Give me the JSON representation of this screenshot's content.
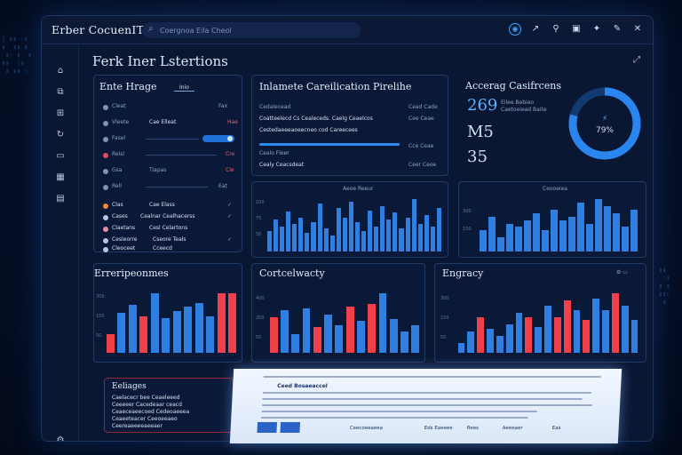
{
  "window": {
    "title": "Erber CocuenIT"
  },
  "search": {
    "placeholder": "Coergnoa Eila Cheol"
  },
  "page": {
    "title": "Ferk Iner Lstertions"
  },
  "panels": {
    "left_top": {
      "title": "Ente Hrage",
      "tab": "Inio",
      "rows": [
        {
          "label": "Cleat",
          "value": "Fax"
        },
        {
          "label": "Vleete",
          "mid": "Cae Elleat",
          "value": "Hae"
        },
        {
          "label": "Fasel",
          "toggle": true
        },
        {
          "label": "Reisl",
          "value": "Cre"
        },
        {
          "label": "Gsa",
          "mid": "Tiapas",
          "value": "Cle"
        },
        {
          "label": "Rell",
          "value": "Eat"
        }
      ],
      "list": [
        {
          "label": "Clas",
          "mid": "Cae Elass"
        },
        {
          "label": "Cases",
          "mid": "Cealnar Cealhacerss"
        },
        {
          "label": "Claetans",
          "mid": "Cesl Celartons"
        },
        {
          "label": "Cesleorre",
          "mid": "Cseore Teals"
        },
        {
          "label": "Cleoceet",
          "mid": "Cceecd"
        }
      ]
    },
    "pipeline": {
      "title": "Inlamete Careilication Pirelihe",
      "rows": [
        {
          "label": "Cedalecead",
          "value": "Cead Cade"
        },
        {
          "label": "Coatteelecd Cs Cealeceds. Caelg Ceaelcos",
          "value": "Cee Ceae"
        },
        {
          "label": "Cestedaeeeaoeecneo cod Careecees",
          "value": ""
        },
        {
          "label": "Cealo Fleer",
          "value": "Cce Ceae"
        },
        {
          "label": "Cealy Ceacsdeat",
          "value": "Ceer Ceoe"
        }
      ],
      "chart_title": "Aeoe Reeur"
    },
    "accuracy": {
      "title": "Accerag Casifrcens",
      "stats": [
        {
          "value": "269",
          "note": "Eilee Bebieo"
        },
        {
          "value": "M5",
          "note": ""
        },
        {
          "value": "35",
          "note": ""
        }
      ],
      "sub_note": "Caetoeiead Baite",
      "gauge_label": "79%",
      "gauge_value": 0.79,
      "chart_title": "Ceooeiea"
    },
    "efficiency": {
      "title": "Erreripeonmes"
    },
    "connectivity": {
      "title": "Cortcelwacty"
    },
    "energy": {
      "title": "Engracy"
    },
    "notes": {
      "title": "Eeliages",
      "lines": [
        "Caelacecr bee Ceaeleeed",
        "Ceeeeer Cacedeaar ceacd",
        "Ceaeceaeecoed Cedeoaeeea",
        "Ceaeeteacer Ceeoeeaeo",
        "Ceereaeeeeaeeaer"
      ]
    }
  },
  "doc": {
    "heading": "Ceed Bosaeaccel",
    "footer": [
      "Ceecoeeaeea",
      "Eds Eaeeee",
      "Rees",
      "Aeeeaer",
      "Eas"
    ]
  },
  "colors": {
    "blue": "#2f7ee0",
    "red": "#f0404a",
    "accent": "#3ea2ff"
  },
  "chart_data": [
    {
      "type": "bar",
      "title": "Aeoe Reeur",
      "values": [
        18,
        28,
        22,
        35,
        24,
        30,
        16,
        26,
        42,
        20,
        14,
        38,
        30,
        44,
        26,
        18,
        36,
        22,
        40,
        28,
        34,
        20,
        30,
        46,
        24,
        32,
        22,
        38
      ]
    },
    {
      "type": "bar",
      "title": "Ceooeiea",
      "values": [
        12,
        20,
        8,
        16,
        14,
        18,
        22,
        12,
        24,
        18,
        20,
        28,
        16,
        30,
        26,
        22,
        14,
        24
      ]
    },
    {
      "type": "bar",
      "title": "Erreripeonmes",
      "series": [
        {
          "values": [
            20,
            42,
            50,
            38,
            62,
            36,
            44,
            48,
            52,
            38,
            62,
            62
          ]
        }
      ],
      "red_index": [
        0,
        3,
        10,
        11
      ]
    },
    {
      "type": "bar",
      "title": "Cortcelwacty",
      "series": [
        {
          "values": [
            34,
            40,
            18,
            42,
            24,
            36,
            26,
            44,
            30,
            46,
            56,
            32,
            20,
            26
          ]
        }
      ],
      "red_index": [
        0,
        4,
        7,
        9
      ]
    },
    {
      "type": "bar",
      "title": "Engracy",
      "series": [
        {
          "values": [
            8,
            18,
            30,
            20,
            14,
            24,
            34,
            30,
            22,
            40,
            30,
            44,
            36,
            28,
            46,
            36,
            50,
            40,
            28
          ]
        }
      ],
      "red_index": [
        2,
        7,
        10,
        11,
        13,
        16
      ]
    }
  ]
}
